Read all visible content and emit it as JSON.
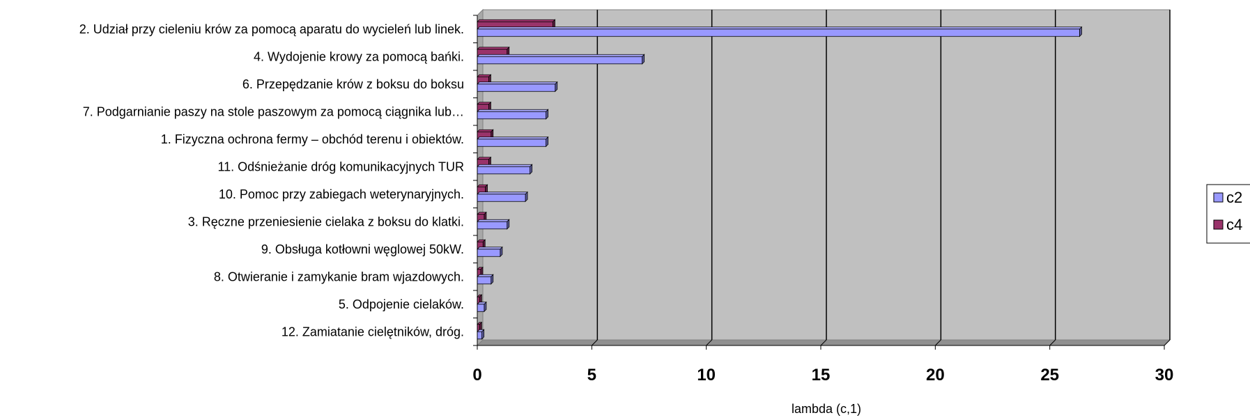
{
  "chart_data": {
    "type": "bar",
    "orientation": "horizontal",
    "categories": [
      "2. Udział przy cieleniu krów za pomocą aparatu do wycieleń lub linek.",
      "4. Wydojenie krowy za pomocą bańki.",
      "6. Przepędzanie krów z boksu do boksu",
      "7. Podgarnianie paszy na stole paszowym za pomocą ciągnika lub…",
      "1. Fizyczna ochrona fermy – obchód terenu i obiektów.",
      "11. Odśnieżanie dróg komunikacyjnych TUR",
      "10. Pomoc przy zabiegach weterynaryjnych.",
      "3. Ręczne przeniesienie cielaka z boksu do klatki.",
      "9. Obsługa kotłowni węglowej 50kW.",
      "8. Otwieranie i zamykanie bram wjazdowych.",
      "5. Odpojenie cielaków.",
      "12. Zamiatanie cielętników, dróg."
    ],
    "series": [
      {
        "name": "c4",
        "color": "#99336a",
        "values": [
          3.3,
          1.3,
          0.5,
          0.5,
          0.6,
          0.5,
          0.35,
          0.3,
          0.25,
          0.15,
          0.1,
          0.1
        ]
      },
      {
        "name": "c2",
        "color": "#9999ff",
        "values": [
          26.3,
          7.2,
          3.4,
          3.0,
          3.0,
          2.3,
          2.1,
          1.3,
          1.0,
          0.6,
          0.3,
          0.2
        ]
      }
    ],
    "xlabel": "lambda (c,1)",
    "xlim": [
      0,
      30
    ],
    "xticks": [
      "0",
      "5",
      "10",
      "15",
      "20",
      "25",
      "30"
    ],
    "grid": true,
    "legend_position": "right"
  }
}
